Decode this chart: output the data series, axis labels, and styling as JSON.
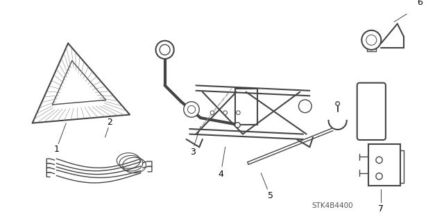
{
  "background_color": "#ffffff",
  "line_color": "#444444",
  "label_color": "#000000",
  "diagram_code": "STK4B4400",
  "fig_width": 6.4,
  "fig_height": 3.19,
  "dpi": 100
}
